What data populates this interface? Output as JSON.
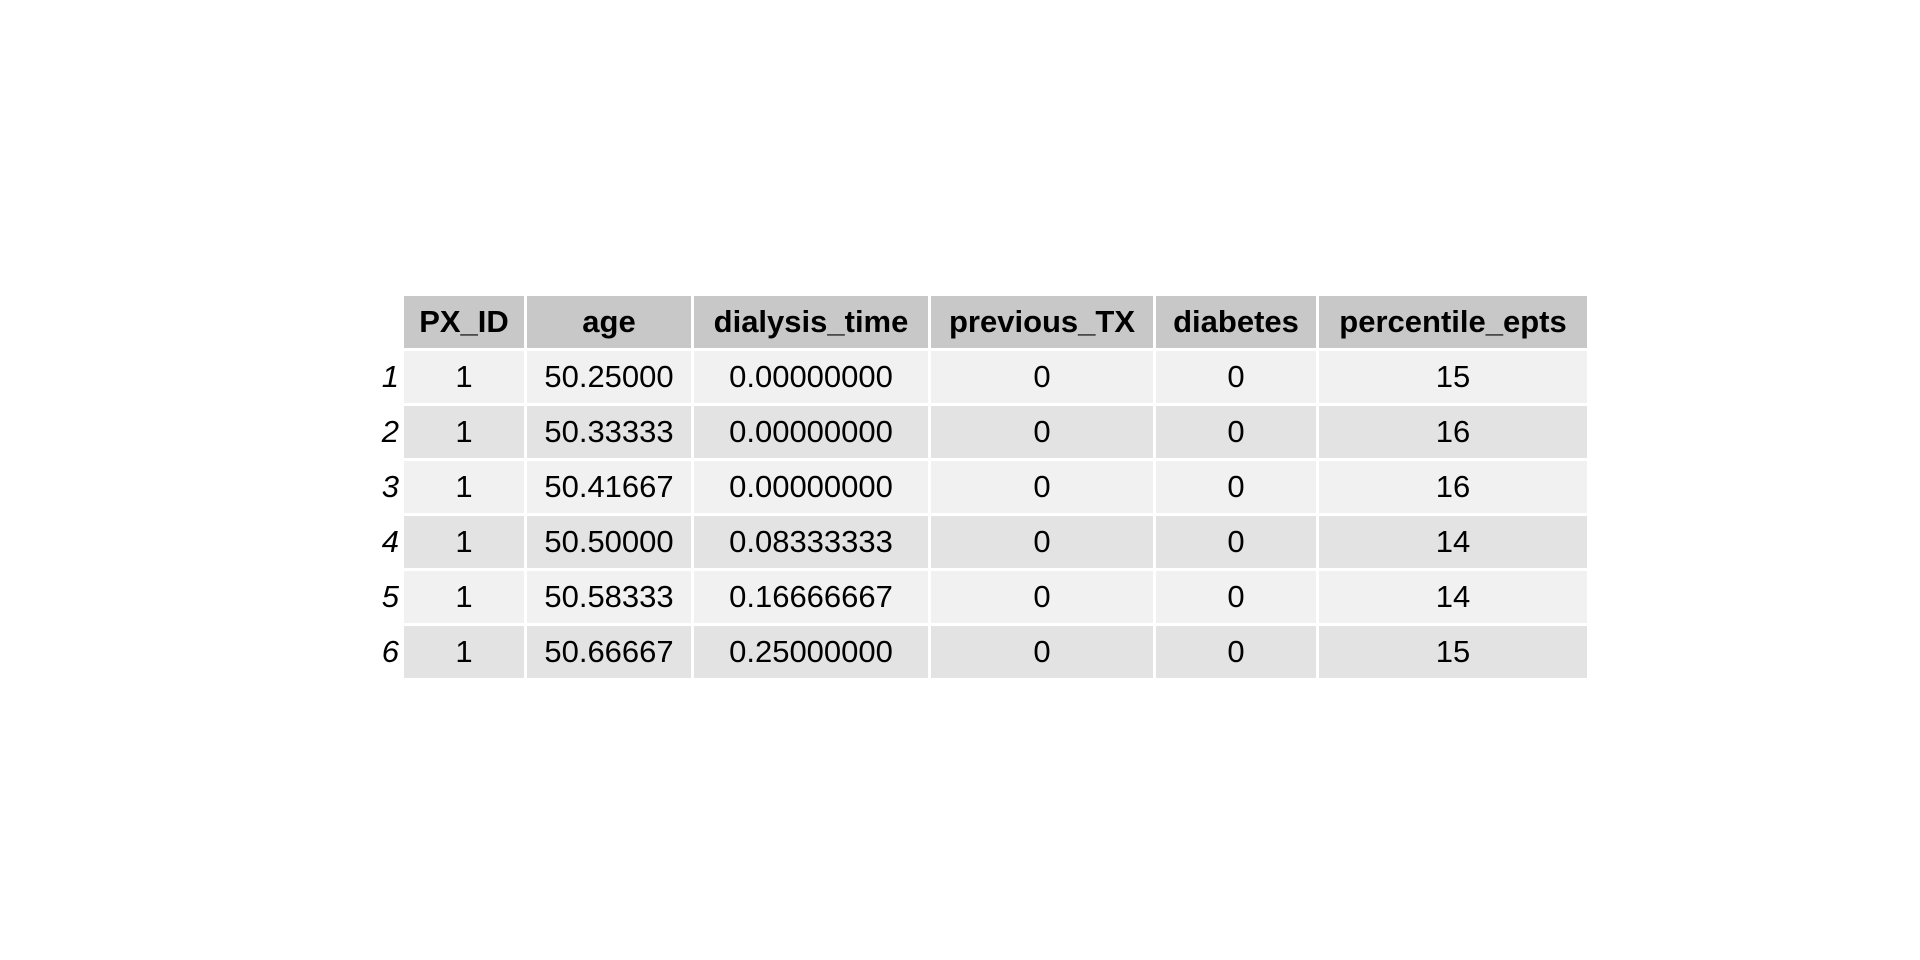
{
  "table": {
    "columns": [
      "PX_ID",
      "age",
      "dialysis_time",
      "previous_TX",
      "diabetes",
      "percentile_epts"
    ],
    "rows": [
      {
        "name": "1",
        "cells": [
          "1",
          "50.25000",
          "0.00000000",
          "0",
          "0",
          "15"
        ]
      },
      {
        "name": "2",
        "cells": [
          "1",
          "50.33333",
          "0.00000000",
          "0",
          "0",
          "16"
        ]
      },
      {
        "name": "3",
        "cells": [
          "1",
          "50.41667",
          "0.00000000",
          "0",
          "0",
          "16"
        ]
      },
      {
        "name": "4",
        "cells": [
          "1",
          "50.50000",
          "0.08333333",
          "0",
          "0",
          "14"
        ]
      },
      {
        "name": "5",
        "cells": [
          "1",
          "50.58333",
          "0.16666667",
          "0",
          "0",
          "14"
        ]
      },
      {
        "name": "6",
        "cells": [
          "1",
          "50.66667",
          "0.25000000",
          "0",
          "0",
          "15"
        ]
      }
    ],
    "colors": {
      "header_bg": "#c8c8c8",
      "row_odd_bg": "#f1f1f1",
      "row_even_bg": "#e3e3e3"
    }
  }
}
